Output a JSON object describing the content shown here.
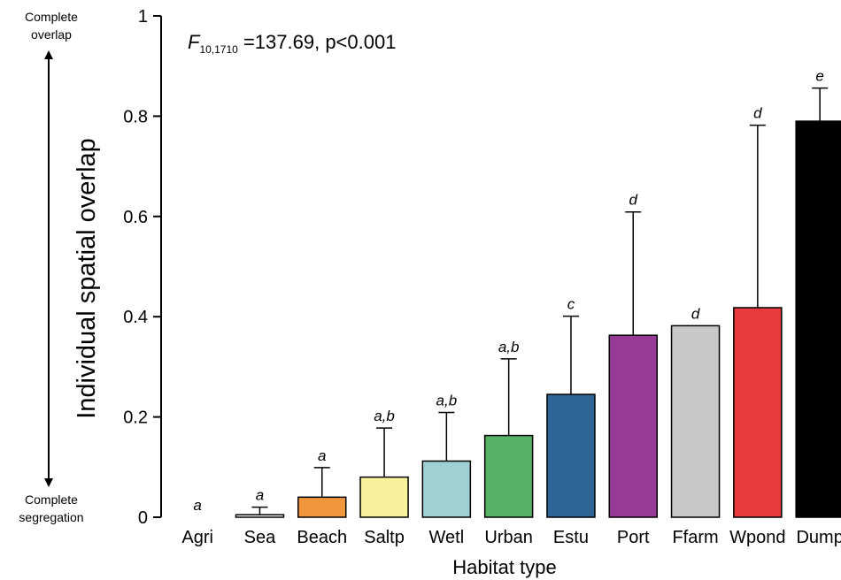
{
  "chart_data": {
    "type": "bar",
    "xlabel": "Habitat type",
    "ylabel": "Individual spatial overlap",
    "ylim": [
      0,
      1
    ],
    "yticks": [
      "0",
      "0.2",
      "0.4",
      "0.6",
      "0.8",
      "1"
    ],
    "annotation": {
      "stat_symbol": "F",
      "stat_subscript": "10,1710",
      "stat_rest": " =137.69, p<0.001"
    },
    "side_labels": {
      "top_line1": "Complete",
      "top_line2": "overlap",
      "bottom_line1": "Complete",
      "bottom_line2": "segregation"
    },
    "categories": [
      "Agri",
      "Sea",
      "Beach",
      "Saltp",
      "Wetl",
      "Urban",
      "Estu",
      "Port",
      "Ffarm",
      "Wpond",
      "Dump"
    ],
    "values": [
      0.0,
      0.005,
      0.04,
      0.08,
      0.112,
      0.163,
      0.245,
      0.363,
      0.382,
      0.418,
      0.79
    ],
    "error_upper": [
      0.0,
      0.02,
      0.099,
      0.178,
      0.209,
      0.316,
      0.401,
      0.609,
      0.382,
      0.782,
      0.856
    ],
    "significance": [
      "a",
      "a",
      "a",
      "a,b",
      "a,b",
      "a,b",
      "c",
      "d",
      "d",
      "d",
      "e"
    ],
    "colors": [
      "#ffffff",
      "#ffffff",
      "#f0963c",
      "#f8f09a",
      "#9fd0d4",
      "#58b265",
      "#2e6496",
      "#963a96",
      "#c8c8c8",
      "#e83a3a",
      "#000000"
    ]
  }
}
